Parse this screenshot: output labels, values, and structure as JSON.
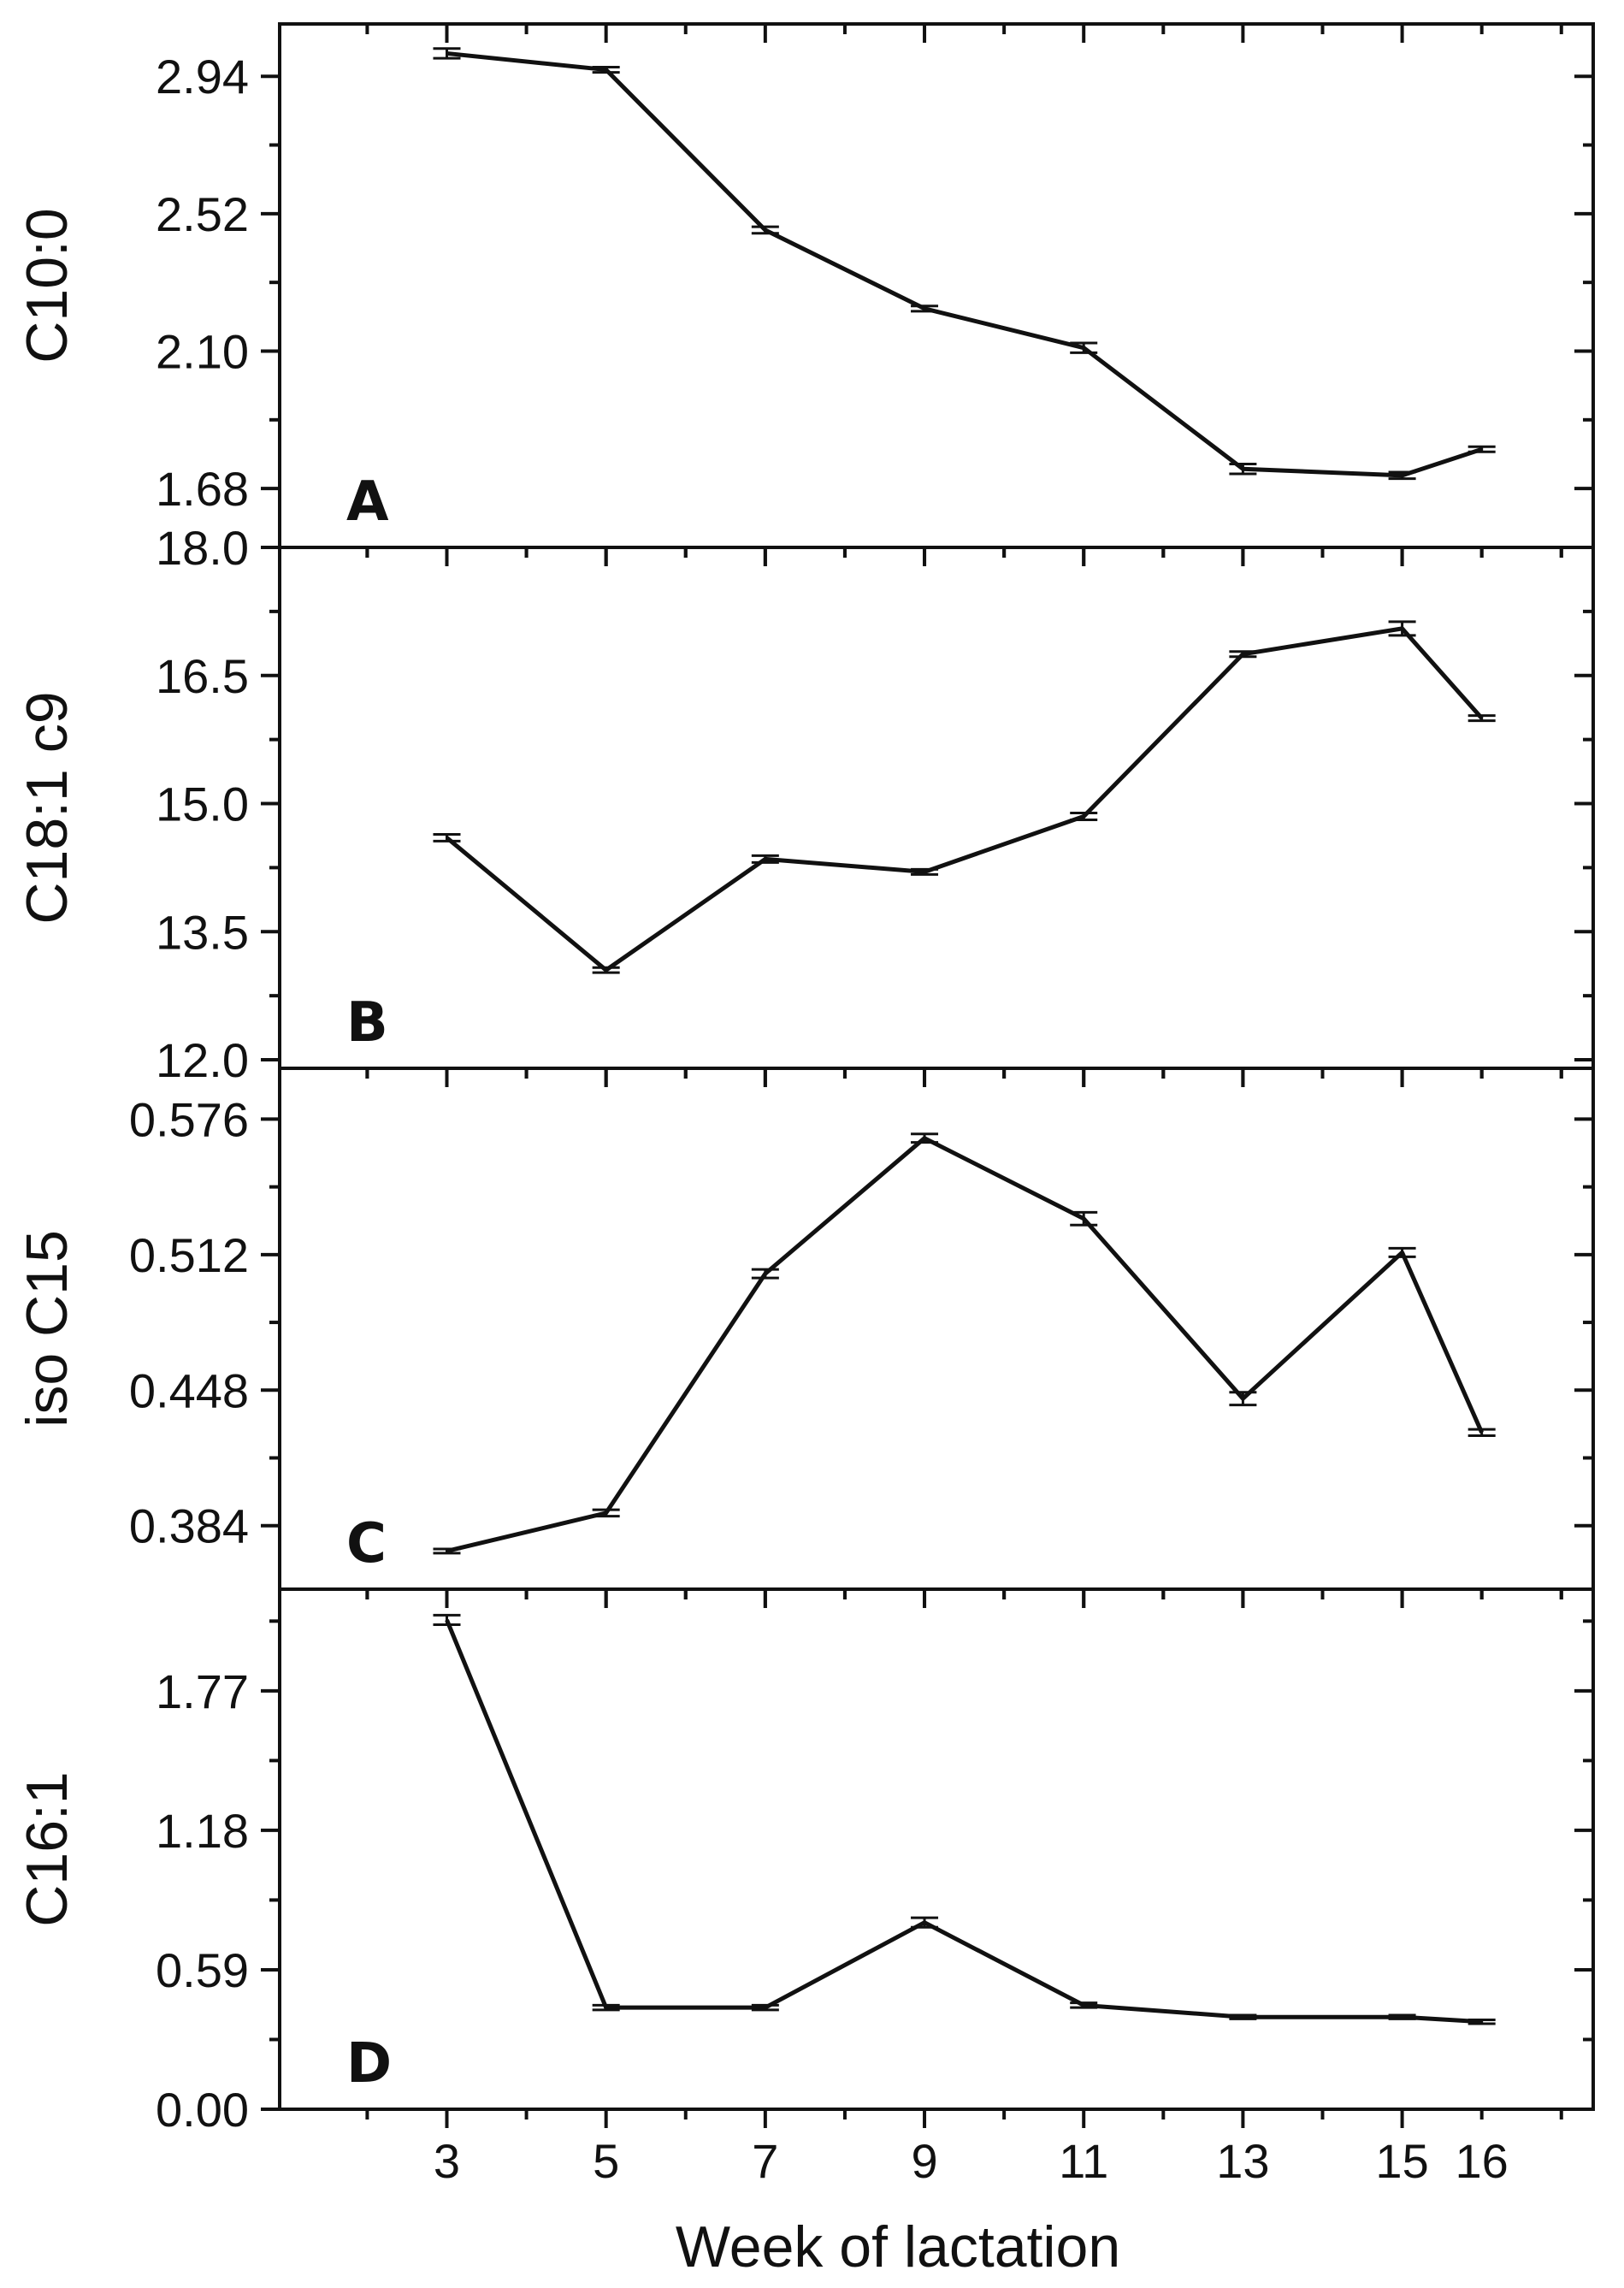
{
  "chart_data": {
    "type": "line",
    "layout": "4 vertically stacked panels sharing the x-axis",
    "xlabel": "Week of lactation",
    "x_ticks": [
      3,
      5,
      7,
      9,
      11,
      13,
      15,
      16
    ],
    "x_tick_labels": [
      "3",
      "5",
      "7",
      "9",
      "11",
      "13",
      "15",
      "16"
    ],
    "xlim": [
      0.9,
      17.4
    ],
    "grid": false,
    "legend": "none",
    "panels": [
      {
        "panel_label": "A",
        "ylabel": "C10:0",
        "ylim": [
          1.5,
          3.1
        ],
        "y_ticks": [
          1.68,
          2.1,
          2.52,
          2.94
        ],
        "y_tick_labels": [
          "1.68",
          "2.10",
          "2.52",
          "2.94"
        ],
        "x": [
          3,
          5,
          7,
          9,
          11,
          13,
          15,
          16
        ],
        "values": [
          3.01,
          2.96,
          2.47,
          2.23,
          2.11,
          1.74,
          1.72,
          1.8
        ],
        "errors": [
          0.015,
          0.008,
          0.01,
          0.008,
          0.015,
          0.015,
          0.01,
          0.008
        ]
      },
      {
        "panel_label": "B",
        "ylabel": "C18:1 c9",
        "ylim": [
          11.9,
          18.0
        ],
        "y_ticks": [
          12.0,
          13.5,
          15.0,
          16.5,
          18.0
        ],
        "y_tick_labels": [
          "12.0",
          "13.5",
          "15.0",
          "16.5",
          "18.0"
        ],
        "x": [
          3,
          5,
          7,
          9,
          11,
          13,
          15,
          16
        ],
        "values": [
          14.6,
          13.05,
          14.35,
          14.2,
          14.85,
          16.75,
          17.05,
          16.0
        ],
        "errors": [
          0.04,
          0.03,
          0.04,
          0.03,
          0.04,
          0.03,
          0.08,
          0.03
        ]
      },
      {
        "panel_label": "C",
        "ylabel": "iso C15",
        "ylim": [
          0.354,
          0.6
        ],
        "y_ticks": [
          0.384,
          0.448,
          0.512,
          0.576
        ],
        "y_tick_labels": [
          "0.384",
          "0.448",
          "0.512",
          "0.576"
        ],
        "x": [
          3,
          5,
          7,
          9,
          11,
          13,
          15,
          16
        ],
        "values": [
          0.372,
          0.39,
          0.503,
          0.567,
          0.529,
          0.444,
          0.513,
          0.428
        ],
        "errors": [
          0.001,
          0.0015,
          0.002,
          0.002,
          0.003,
          0.003,
          0.002,
          0.0015
        ]
      },
      {
        "panel_label": "D",
        "ylabel": "C16:1",
        "ylim": [
          0.0,
          2.2
        ],
        "y_ticks": [
          0.0,
          0.59,
          1.18,
          1.77
        ],
        "y_tick_labels": [
          "0.00",
          "0.59",
          "1.18",
          "1.77"
        ],
        "x": [
          3,
          5,
          7,
          9,
          11,
          13,
          15,
          16
        ],
        "values": [
          2.07,
          0.43,
          0.43,
          0.79,
          0.44,
          0.39,
          0.39,
          0.37
        ],
        "errors": [
          0.02,
          0.01,
          0.01,
          0.02,
          0.01,
          0.008,
          0.008,
          0.008
        ]
      }
    ]
  }
}
